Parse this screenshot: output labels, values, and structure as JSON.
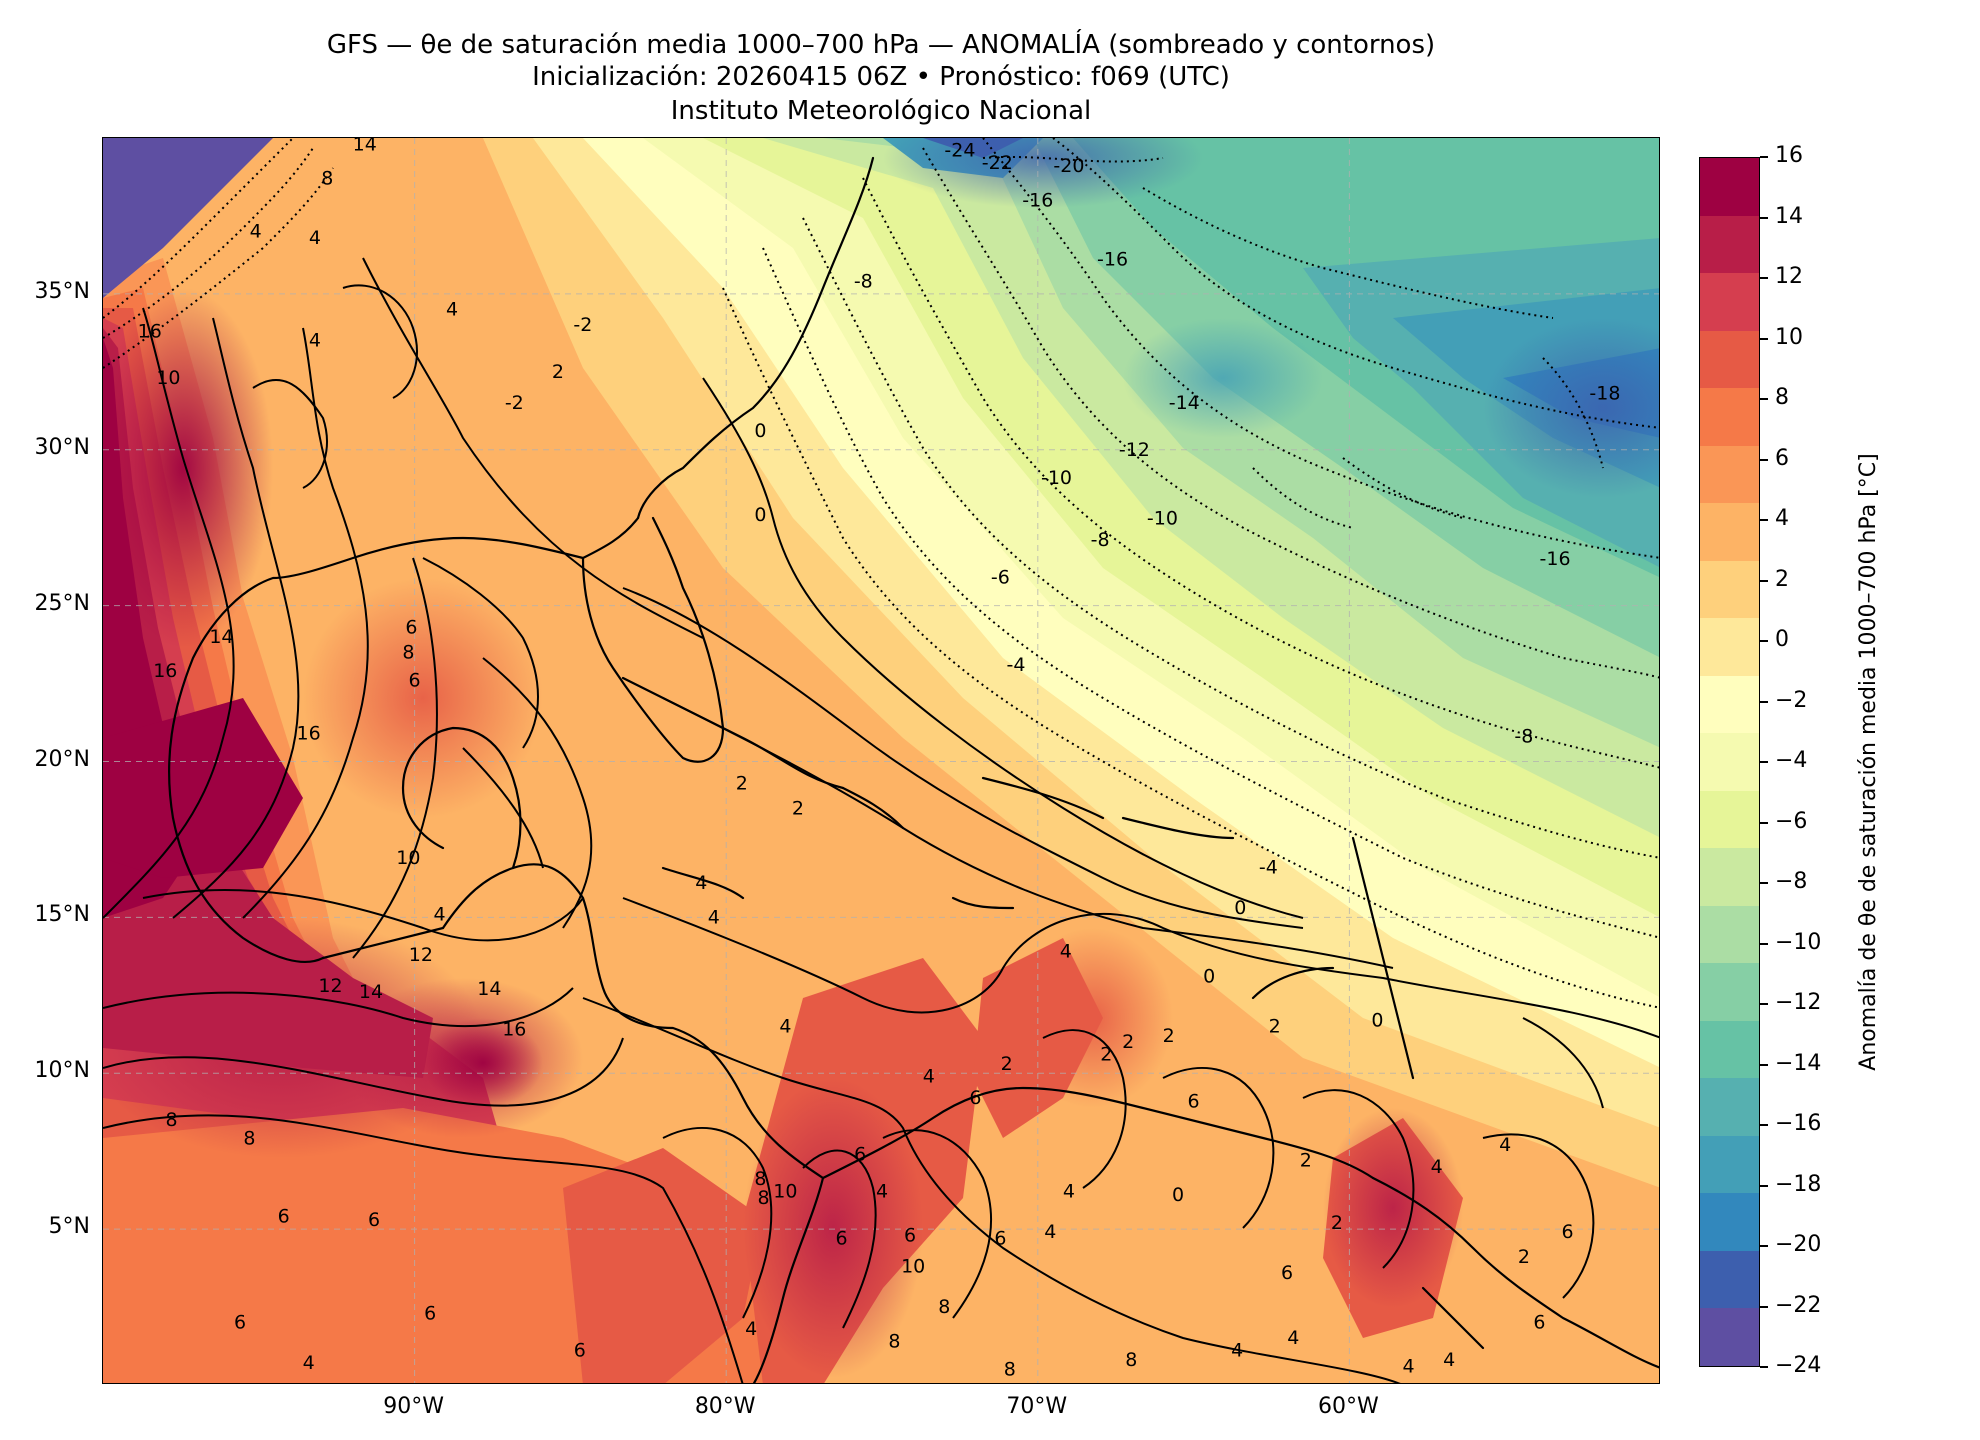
{
  "title": {
    "line1": "GFS — θe de saturación media 1000–700 hPa — ANOMALÍA (sombreado y contornos)",
    "line2": "Inicialización: 20260415 06Z   •   Pronóstico: f069 (UTC)",
    "line3": "Instituto Meteorológico Nacional"
  },
  "map": {
    "extent": {
      "lon_min": -100,
      "lon_max": -50,
      "lat_min": 0,
      "lat_max": 40
    },
    "lat_ticks": [
      {
        "value": 35,
        "label": "35°N"
      },
      {
        "value": 30,
        "label": "30°N"
      },
      {
        "value": 25,
        "label": "25°N"
      },
      {
        "value": 20,
        "label": "20°N"
      },
      {
        "value": 15,
        "label": "15°N"
      },
      {
        "value": 10,
        "label": "10°N"
      },
      {
        "value": 5,
        "label": "5°N"
      }
    ],
    "lon_ticks": [
      {
        "value": -90,
        "label": "90°W"
      },
      {
        "value": -80,
        "label": "80°W"
      },
      {
        "value": -70,
        "label": "70°W"
      },
      {
        "value": -60,
        "label": "60°W"
      }
    ],
    "gridlines": true,
    "contour_labels": [
      {
        "lon": -86.8,
        "lat": 11.4,
        "text": "16"
      },
      {
        "lon": -87.6,
        "lat": 12.7,
        "text": "14"
      },
      {
        "lon": -89.8,
        "lat": 13.8,
        "text": "12"
      },
      {
        "lon": -91.4,
        "lat": 12.6,
        "text": "14"
      },
      {
        "lon": -92.7,
        "lat": 12.8,
        "text": "12"
      },
      {
        "lon": -98.0,
        "lat": 22.9,
        "text": "16"
      },
      {
        "lon": -96.2,
        "lat": 24.0,
        "text": "14"
      },
      {
        "lon": -93.4,
        "lat": 20.9,
        "text": "16"
      },
      {
        "lon": -98.5,
        "lat": 33.8,
        "text": "16"
      },
      {
        "lon": -97.9,
        "lat": 32.3,
        "text": "10"
      },
      {
        "lon": -90.2,
        "lat": 23.5,
        "text": "8"
      },
      {
        "lon": -90.1,
        "lat": 24.3,
        "text": "6"
      },
      {
        "lon": -90.0,
        "lat": 22.6,
        "text": "6"
      },
      {
        "lon": -90.2,
        "lat": 16.9,
        "text": "10"
      },
      {
        "lon": -89.2,
        "lat": 15.1,
        "text": "4"
      },
      {
        "lon": -95.3,
        "lat": 7.9,
        "text": "8"
      },
      {
        "lon": -97.8,
        "lat": 8.5,
        "text": "8"
      },
      {
        "lon": -94.2,
        "lat": 5.4,
        "text": "6"
      },
      {
        "lon": -91.3,
        "lat": 5.3,
        "text": "6"
      },
      {
        "lon": -95.6,
        "lat": 2.0,
        "text": "6"
      },
      {
        "lon": -89.5,
        "lat": 2.3,
        "text": "6"
      },
      {
        "lon": -84.7,
        "lat": 1.1,
        "text": "6"
      },
      {
        "lon": -93.4,
        "lat": 0.7,
        "text": "4"
      },
      {
        "lon": -93.2,
        "lat": 33.5,
        "text": "4"
      },
      {
        "lon": -93.2,
        "lat": 36.8,
        "text": "4"
      },
      {
        "lon": -88.8,
        "lat": 34.5,
        "text": "4"
      },
      {
        "lon": -85.4,
        "lat": 32.5,
        "text": "2"
      },
      {
        "lon": -84.6,
        "lat": 34.0,
        "text": "-2"
      },
      {
        "lon": -86.8,
        "lat": 31.5,
        "text": "-2"
      },
      {
        "lon": -78.9,
        "lat": 30.6,
        "text": "0"
      },
      {
        "lon": -78.9,
        "lat": 27.9,
        "text": "0"
      },
      {
        "lon": -75.6,
        "lat": 35.4,
        "text": "-8"
      },
      {
        "lon": -69.4,
        "lat": 29.1,
        "text": "-10"
      },
      {
        "lon": -66.0,
        "lat": 27.8,
        "text": "-10"
      },
      {
        "lon": -68.0,
        "lat": 27.1,
        "text": "-8"
      },
      {
        "lon": -66.9,
        "lat": 30.0,
        "text": "-12"
      },
      {
        "lon": -67.6,
        "lat": 36.1,
        "text": "-16"
      },
      {
        "lon": -65.3,
        "lat": 31.5,
        "text": "-14"
      },
      {
        "lon": -70.0,
        "lat": 38.0,
        "text": "-16"
      },
      {
        "lon": -71.3,
        "lat": 39.2,
        "text": "-22"
      },
      {
        "lon": -72.5,
        "lat": 39.6,
        "text": "-24"
      },
      {
        "lon": -69.0,
        "lat": 39.1,
        "text": "-20"
      },
      {
        "lon": -51.8,
        "lat": 31.8,
        "text": "-18"
      },
      {
        "lon": -53.4,
        "lat": 26.5,
        "text": "-16"
      },
      {
        "lon": -71.2,
        "lat": 25.9,
        "text": "-6"
      },
      {
        "lon": -70.7,
        "lat": 23.1,
        "text": "-4"
      },
      {
        "lon": -54.4,
        "lat": 20.8,
        "text": "-8"
      },
      {
        "lon": -63.5,
        "lat": 15.3,
        "text": "0"
      },
      {
        "lon": -62.6,
        "lat": 16.6,
        "text": "-4"
      },
      {
        "lon": -64.5,
        "lat": 13.1,
        "text": "0"
      },
      {
        "lon": -69.1,
        "lat": 13.9,
        "text": "4"
      },
      {
        "lon": -79.5,
        "lat": 19.3,
        "text": "2"
      },
      {
        "lon": -77.7,
        "lat": 18.5,
        "text": "2"
      },
      {
        "lon": -78.1,
        "lat": 11.5,
        "text": "4"
      },
      {
        "lon": -80.8,
        "lat": 16.1,
        "text": "4"
      },
      {
        "lon": -80.4,
        "lat": 15.0,
        "text": "4"
      },
      {
        "lon": -73.5,
        "lat": 9.9,
        "text": "4"
      },
      {
        "lon": -71.0,
        "lat": 10.3,
        "text": "2"
      },
      {
        "lon": -72.0,
        "lat": 9.2,
        "text": "6"
      },
      {
        "lon": -67.8,
        "lat": 10.6,
        "text": "2"
      },
      {
        "lon": -67.1,
        "lat": 11.0,
        "text": "2"
      },
      {
        "lon": -69.0,
        "lat": 6.2,
        "text": "4"
      },
      {
        "lon": -69.6,
        "lat": 4.9,
        "text": "4"
      },
      {
        "lon": -71.2,
        "lat": 4.7,
        "text": "6"
      },
      {
        "lon": -74.1,
        "lat": 4.8,
        "text": "6"
      },
      {
        "lon": -75.0,
        "lat": 6.2,
        "text": "4"
      },
      {
        "lon": -74.0,
        "lat": 3.8,
        "text": "10"
      },
      {
        "lon": -73.0,
        "lat": 2.5,
        "text": "8"
      },
      {
        "lon": -74.6,
        "lat": 1.4,
        "text": "8"
      },
      {
        "lon": -70.9,
        "lat": 0.5,
        "text": "8"
      },
      {
        "lon": -75.7,
        "lat": 7.4,
        "text": "6"
      },
      {
        "lon": -78.9,
        "lat": 6.6,
        "text": "8"
      },
      {
        "lon": -78.8,
        "lat": 6.0,
        "text": "8"
      },
      {
        "lon": -78.1,
        "lat": 6.2,
        "text": "10"
      },
      {
        "lon": -79.2,
        "lat": 1.8,
        "text": "4"
      },
      {
        "lon": -76.3,
        "lat": 4.7,
        "text": "6"
      },
      {
        "lon": -62.4,
        "lat": 11.5,
        "text": "2"
      },
      {
        "lon": -65.8,
        "lat": 11.2,
        "text": "2"
      },
      {
        "lon": -65.0,
        "lat": 9.1,
        "text": "6"
      },
      {
        "lon": -65.5,
        "lat": 6.1,
        "text": "0"
      },
      {
        "lon": -60.4,
        "lat": 5.2,
        "text": "2"
      },
      {
        "lon": -62.0,
        "lat": 3.6,
        "text": "6"
      },
      {
        "lon": -57.2,
        "lat": 7.0,
        "text": "4"
      },
      {
        "lon": -55.0,
        "lat": 7.7,
        "text": "4"
      },
      {
        "lon": -54.4,
        "lat": 4.1,
        "text": "2"
      },
      {
        "lon": -53.0,
        "lat": 4.9,
        "text": "6"
      },
      {
        "lon": -59.1,
        "lat": 11.7,
        "text": "0"
      },
      {
        "lon": -61.8,
        "lat": 1.5,
        "text": "4"
      },
      {
        "lon": -63.6,
        "lat": 1.1,
        "text": "4"
      },
      {
        "lon": -58.1,
        "lat": 0.6,
        "text": "4"
      },
      {
        "lon": -56.8,
        "lat": 0.8,
        "text": "4"
      },
      {
        "lon": -53.9,
        "lat": 2.0,
        "text": "6"
      },
      {
        "lon": -61.4,
        "lat": 7.2,
        "text": "2"
      },
      {
        "lon": -67.0,
        "lat": 0.8,
        "text": "8"
      },
      {
        "lon": -95.1,
        "lat": 37.0,
        "text": "4"
      },
      {
        "lon": -91.6,
        "lat": 39.8,
        "text": "14"
      },
      {
        "lon": -92.8,
        "lat": 38.7,
        "text": "8"
      }
    ]
  },
  "colorbar": {
    "label": "Anomalía de θe de saturación media 1000–700 hPa [°C]",
    "min": -24,
    "max": 16,
    "step": 2,
    "colors": [
      "#5e4fa2",
      "#3d5fae",
      "#3288bd",
      "#439fb7",
      "#56b0b0",
      "#66c2a5",
      "#86cfa5",
      "#abdda4",
      "#cae9a0",
      "#e6f598",
      "#f5fab0",
      "#fffebe",
      "#fee89a",
      "#fed07c",
      "#fdb365",
      "#fa9656",
      "#f57948",
      "#e65a45",
      "#d53e4f",
      "#b81e48",
      "#9e0142"
    ],
    "tick_labels": [
      "16",
      "14",
      "12",
      "10",
      "8",
      "6",
      "4",
      "2",
      "0",
      "−2",
      "−4",
      "−6",
      "−8",
      "−10",
      "−12",
      "−14",
      "−16",
      "−18",
      "−20",
      "−22",
      "−24"
    ]
  }
}
